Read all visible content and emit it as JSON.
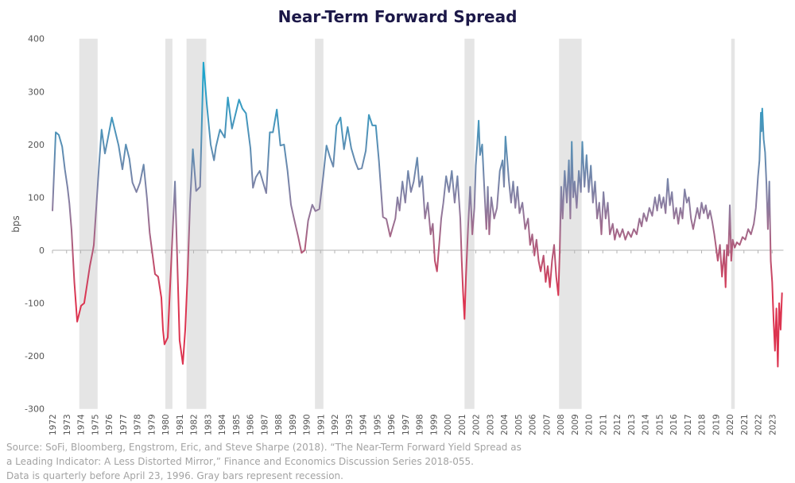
{
  "chart_data": {
    "type": "line",
    "title": "Near-Term Forward Spread",
    "xlabel": "",
    "ylabel": "bps",
    "ylim": [
      -300,
      400
    ],
    "yticks": [
      400,
      300,
      200,
      100,
      0,
      -100,
      -200,
      -300
    ],
    "xlim": [
      1972,
      2023.8
    ],
    "xticks": [
      "1972",
      "1973",
      "1974",
      "1975",
      "1976",
      "1977",
      "1978",
      "1979",
      "1980",
      "1981",
      "1982",
      "1983",
      "1984",
      "1985",
      "1986",
      "1987",
      "1988",
      "1989",
      "1990",
      "1991",
      "1992",
      "1993",
      "1994",
      "1995",
      "1996",
      "1997",
      "1998",
      "1999",
      "2000",
      "2001",
      "2002",
      "2003",
      "2004",
      "2005",
      "2006",
      "2007",
      "2008",
      "2009",
      "2010",
      "2011",
      "2012",
      "2013",
      "2014",
      "2015",
      "2016",
      "2017",
      "2018",
      "2019",
      "2020",
      "2021",
      "2022",
      "2023"
    ],
    "grid": false,
    "line_color_scale": {
      "low": "#dc3450",
      "mid": "#8c7da0",
      "high": "#1ea4cc"
    },
    "recession_color": "#e5e5e5",
    "recessions": [
      [
        1973.9,
        1975.2
      ],
      [
        1980.0,
        1980.5
      ],
      [
        1981.5,
        1982.9
      ],
      [
        1990.6,
        1991.2
      ],
      [
        2001.2,
        2001.9
      ],
      [
        2007.9,
        2009.5
      ],
      [
        2020.1,
        2020.35
      ]
    ],
    "series": [
      {
        "points": [
          [
            1972.0,
            74
          ],
          [
            1972.23,
            223
          ],
          [
            1972.45,
            218
          ],
          [
            1972.69,
            196
          ],
          [
            1972.88,
            153
          ],
          [
            1973.07,
            118
          ],
          [
            1973.2,
            88
          ],
          [
            1973.35,
            38
          ],
          [
            1973.55,
            -60
          ],
          [
            1973.75,
            -135
          ],
          [
            1974.03,
            -105
          ],
          [
            1974.25,
            -100
          ],
          [
            1974.48,
            -60
          ],
          [
            1974.65,
            -30
          ],
          [
            1974.87,
            0
          ],
          [
            1974.93,
            10
          ],
          [
            1975.32,
            168
          ],
          [
            1975.48,
            228
          ],
          [
            1975.72,
            183
          ],
          [
            1975.89,
            206
          ],
          [
            1976.21,
            251
          ],
          [
            1976.69,
            198
          ],
          [
            1976.96,
            153
          ],
          [
            1977.2,
            200
          ],
          [
            1977.45,
            173
          ],
          [
            1977.67,
            128
          ],
          [
            1977.95,
            110
          ],
          [
            1978.2,
            128
          ],
          [
            1978.46,
            162
          ],
          [
            1978.7,
            98
          ],
          [
            1978.89,
            33
          ],
          [
            1979.27,
            -45
          ],
          [
            1979.49,
            -50
          ],
          [
            1979.72,
            -90
          ],
          [
            1979.83,
            -150
          ],
          [
            1979.94,
            -178
          ],
          [
            1980.17,
            -165
          ],
          [
            1980.68,
            130
          ],
          [
            1981.01,
            -170
          ],
          [
            1981.24,
            -215
          ],
          [
            1981.41,
            -150
          ],
          [
            1981.58,
            -45
          ],
          [
            1981.75,
            90
          ],
          [
            1981.95,
            191
          ],
          [
            1982.18,
            112
          ],
          [
            1982.46,
            120
          ],
          [
            1982.7,
            355
          ],
          [
            1982.93,
            278
          ],
          [
            1983.21,
            200
          ],
          [
            1983.45,
            170
          ],
          [
            1983.59,
            196
          ],
          [
            1983.87,
            228
          ],
          [
            1984.21,
            213
          ],
          [
            1984.43,
            289
          ],
          [
            1984.72,
            230
          ],
          [
            1984.96,
            256
          ],
          [
            1985.22,
            285
          ],
          [
            1985.46,
            268
          ],
          [
            1985.71,
            259
          ],
          [
            1986.03,
            193
          ],
          [
            1986.21,
            118
          ],
          [
            1986.41,
            138
          ],
          [
            1986.69,
            150
          ],
          [
            1987.15,
            108
          ],
          [
            1987.4,
            223
          ],
          [
            1987.62,
            223
          ],
          [
            1987.9,
            266
          ],
          [
            1988.15,
            198
          ],
          [
            1988.41,
            200
          ],
          [
            1988.66,
            150
          ],
          [
            1988.9,
            86
          ],
          [
            1989.13,
            58
          ],
          [
            1989.41,
            26
          ],
          [
            1989.65,
            -5
          ],
          [
            1989.88,
            0
          ],
          [
            1990.12,
            56
          ],
          [
            1990.41,
            86
          ],
          [
            1990.63,
            74
          ],
          [
            1990.91,
            78
          ],
          [
            1991.19,
            140
          ],
          [
            1991.42,
            198
          ],
          [
            1991.66,
            176
          ],
          [
            1991.9,
            158
          ],
          [
            1992.13,
            236
          ],
          [
            1992.41,
            251
          ],
          [
            1992.66,
            191
          ],
          [
            1992.92,
            233
          ],
          [
            1993.17,
            193
          ],
          [
            1993.45,
            168
          ],
          [
            1993.67,
            153
          ],
          [
            1993.92,
            155
          ],
          [
            1994.2,
            188
          ],
          [
            1994.42,
            256
          ],
          [
            1994.67,
            236
          ],
          [
            1994.91,
            236
          ],
          [
            1995.14,
            168
          ],
          [
            1995.42,
            63
          ],
          [
            1995.66,
            59
          ],
          [
            1995.93,
            26
          ],
          [
            1996.11,
            43
          ],
          [
            1996.3,
            60
          ],
          [
            1996.45,
            100
          ],
          [
            1996.6,
            75
          ],
          [
            1996.8,
            130
          ],
          [
            1997.0,
            90
          ],
          [
            1997.2,
            150
          ],
          [
            1997.4,
            110
          ],
          [
            1997.6,
            130
          ],
          [
            1997.85,
            175
          ],
          [
            1998.0,
            120
          ],
          [
            1998.2,
            140
          ],
          [
            1998.4,
            60
          ],
          [
            1998.6,
            90
          ],
          [
            1998.8,
            30
          ],
          [
            1998.95,
            50
          ],
          [
            1999.1,
            -20
          ],
          [
            1999.25,
            -40
          ],
          [
            1999.4,
            10
          ],
          [
            1999.55,
            60
          ],
          [
            1999.7,
            90
          ],
          [
            1999.9,
            140
          ],
          [
            2000.1,
            110
          ],
          [
            2000.3,
            150
          ],
          [
            2000.5,
            90
          ],
          [
            2000.7,
            140
          ],
          [
            2000.9,
            60
          ],
          [
            2001.0,
            -20
          ],
          [
            2001.1,
            -80
          ],
          [
            2001.2,
            -130
          ],
          [
            2001.3,
            -50
          ],
          [
            2001.45,
            40
          ],
          [
            2001.6,
            120
          ],
          [
            2001.75,
            30
          ],
          [
            2001.9,
            80
          ],
          [
            2002.0,
            160
          ],
          [
            2002.1,
            200
          ],
          [
            2002.2,
            245
          ],
          [
            2002.3,
            180
          ],
          [
            2002.45,
            200
          ],
          [
            2002.6,
            120
          ],
          [
            2002.75,
            40
          ],
          [
            2002.85,
            120
          ],
          [
            2002.95,
            30
          ],
          [
            2003.1,
            100
          ],
          [
            2003.3,
            60
          ],
          [
            2003.5,
            80
          ],
          [
            2003.7,
            150
          ],
          [
            2003.9,
            170
          ],
          [
            2004.0,
            120
          ],
          [
            2004.1,
            215
          ],
          [
            2004.2,
            180
          ],
          [
            2004.35,
            130
          ],
          [
            2004.5,
            90
          ],
          [
            2004.65,
            130
          ],
          [
            2004.8,
            80
          ],
          [
            2004.95,
            120
          ],
          [
            2005.1,
            70
          ],
          [
            2005.3,
            90
          ],
          [
            2005.5,
            40
          ],
          [
            2005.7,
            60
          ],
          [
            2005.85,
            10
          ],
          [
            2006.0,
            30
          ],
          [
            2006.15,
            -10
          ],
          [
            2006.3,
            20
          ],
          [
            2006.45,
            -20
          ],
          [
            2006.6,
            -40
          ],
          [
            2006.8,
            -10
          ],
          [
            2006.95,
            -60
          ],
          [
            2007.1,
            -30
          ],
          [
            2007.25,
            -70
          ],
          [
            2007.4,
            -20
          ],
          [
            2007.55,
            10
          ],
          [
            2007.7,
            -50
          ],
          [
            2007.85,
            -85
          ],
          [
            2007.95,
            0
          ],
          [
            2008.05,
            120
          ],
          [
            2008.15,
            60
          ],
          [
            2008.3,
            150
          ],
          [
            2008.45,
            90
          ],
          [
            2008.6,
            170
          ],
          [
            2008.7,
            60
          ],
          [
            2008.8,
            205
          ],
          [
            2008.9,
            100
          ],
          [
            2009.0,
            130
          ],
          [
            2009.15,
            80
          ],
          [
            2009.3,
            150
          ],
          [
            2009.45,
            110
          ],
          [
            2009.55,
            205
          ],
          [
            2009.7,
            120
          ],
          [
            2009.85,
            180
          ],
          [
            2010.0,
            110
          ],
          [
            2010.15,
            160
          ],
          [
            2010.3,
            90
          ],
          [
            2010.45,
            130
          ],
          [
            2010.6,
            60
          ],
          [
            2010.75,
            90
          ],
          [
            2010.9,
            30
          ],
          [
            2011.05,
            110
          ],
          [
            2011.2,
            60
          ],
          [
            2011.35,
            90
          ],
          [
            2011.5,
            30
          ],
          [
            2011.7,
            50
          ],
          [
            2011.85,
            20
          ],
          [
            2012.0,
            40
          ],
          [
            2012.2,
            25
          ],
          [
            2012.4,
            40
          ],
          [
            2012.6,
            20
          ],
          [
            2012.8,
            35
          ],
          [
            2013.0,
            25
          ],
          [
            2013.2,
            40
          ],
          [
            2013.4,
            30
          ],
          [
            2013.6,
            60
          ],
          [
            2013.75,
            45
          ],
          [
            2013.9,
            70
          ],
          [
            2014.1,
            55
          ],
          [
            2014.3,
            80
          ],
          [
            2014.5,
            65
          ],
          [
            2014.7,
            100
          ],
          [
            2014.85,
            75
          ],
          [
            2015.0,
            105
          ],
          [
            2015.15,
            80
          ],
          [
            2015.3,
            100
          ],
          [
            2015.45,
            70
          ],
          [
            2015.6,
            135
          ],
          [
            2015.75,
            85
          ],
          [
            2015.9,
            110
          ],
          [
            2016.05,
            60
          ],
          [
            2016.2,
            80
          ],
          [
            2016.35,
            50
          ],
          [
            2016.5,
            80
          ],
          [
            2016.65,
            60
          ],
          [
            2016.8,
            115
          ],
          [
            2016.95,
            90
          ],
          [
            2017.1,
            100
          ],
          [
            2017.25,
            60
          ],
          [
            2017.4,
            40
          ],
          [
            2017.55,
            60
          ],
          [
            2017.7,
            80
          ],
          [
            2017.85,
            60
          ],
          [
            2018.0,
            90
          ],
          [
            2018.15,
            70
          ],
          [
            2018.3,
            85
          ],
          [
            2018.45,
            60
          ],
          [
            2018.6,
            75
          ],
          [
            2018.75,
            55
          ],
          [
            2018.9,
            30
          ],
          [
            2019.0,
            10
          ],
          [
            2019.15,
            -20
          ],
          [
            2019.3,
            10
          ],
          [
            2019.45,
            -50
          ],
          [
            2019.6,
            0
          ],
          [
            2019.7,
            -70
          ],
          [
            2019.8,
            10
          ],
          [
            2019.9,
            -10
          ],
          [
            2020.0,
            85
          ],
          [
            2020.1,
            -20
          ],
          [
            2020.2,
            20
          ],
          [
            2020.35,
            5
          ],
          [
            2020.5,
            15
          ],
          [
            2020.7,
            10
          ],
          [
            2020.9,
            25
          ],
          [
            2021.1,
            20
          ],
          [
            2021.3,
            40
          ],
          [
            2021.5,
            30
          ],
          [
            2021.7,
            50
          ],
          [
            2021.85,
            80
          ],
          [
            2022.0,
            140
          ],
          [
            2022.1,
            170
          ],
          [
            2022.2,
            260
          ],
          [
            2022.25,
            225
          ],
          [
            2022.3,
            268
          ],
          [
            2022.4,
            210
          ],
          [
            2022.5,
            185
          ],
          [
            2022.6,
            125
          ],
          [
            2022.7,
            40
          ],
          [
            2022.8,
            130
          ],
          [
            2022.9,
            -20
          ],
          [
            2023.0,
            -60
          ],
          [
            2023.1,
            -130
          ],
          [
            2023.2,
            -190
          ],
          [
            2023.3,
            -110
          ],
          [
            2023.4,
            -220
          ],
          [
            2023.5,
            -100
          ],
          [
            2023.6,
            -150
          ],
          [
            2023.7,
            -80
          ]
        ]
      }
    ]
  },
  "source_lines": [
    "Source: SoFi, Bloomberg, Engstrom, Eric, and Steve Sharpe (2018). “The Near-Term Forward Yield Spread as",
    "a Leading Indicator: A Less Distorted Mirror,” Finance and Economics Discussion Series 2018-055.",
    "Data is quarterly before April 23, 1996. Gray bars represent recession."
  ]
}
